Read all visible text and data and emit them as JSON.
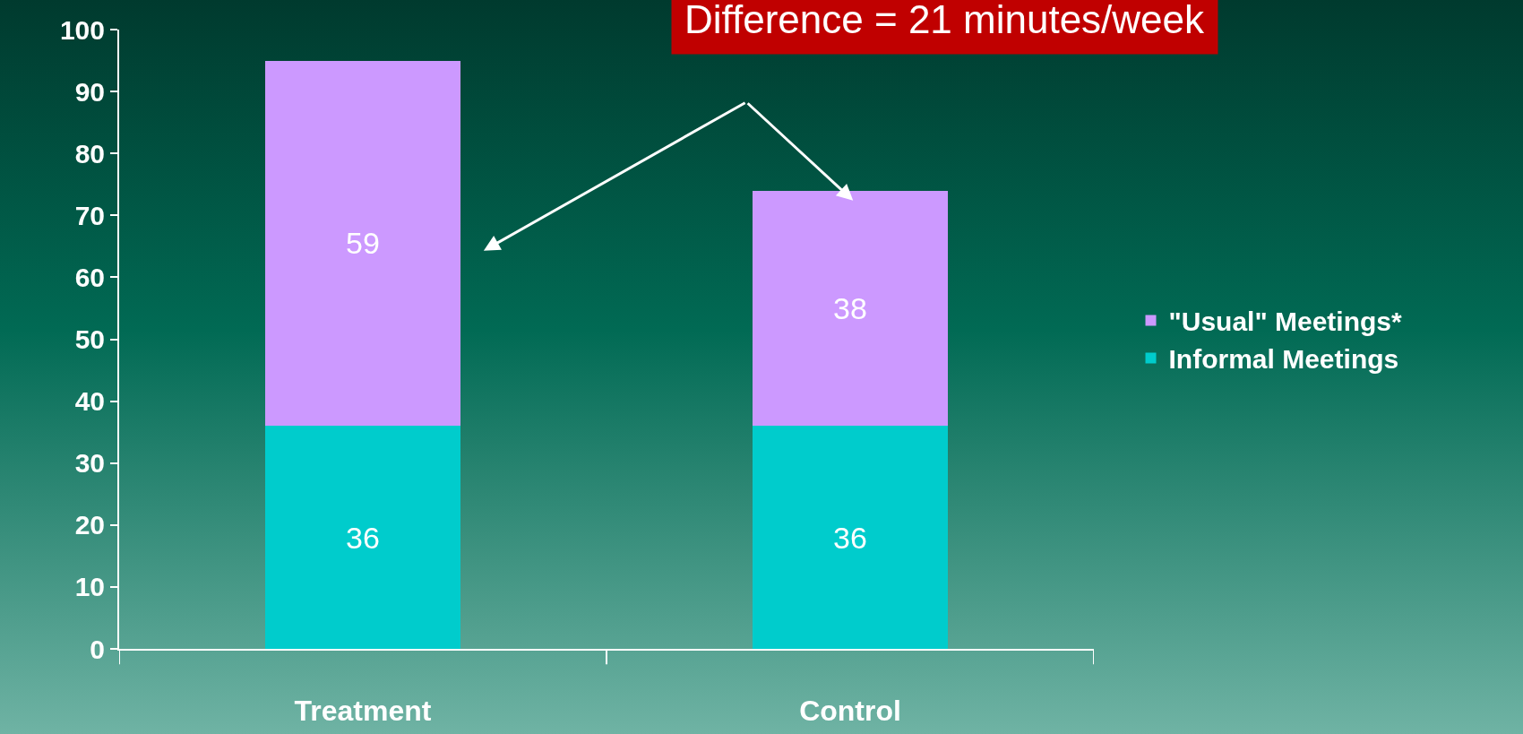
{
  "chart_data": {
    "type": "bar",
    "stacked": true,
    "categories": [
      "Treatment",
      "Control"
    ],
    "series": [
      {
        "name": "Informal Meetings",
        "color": "#00cccc",
        "values": [
          36,
          36
        ]
      },
      {
        "name": "\"Usual\" Meetings*",
        "color": "#cc99ff",
        "values": [
          59,
          38
        ]
      }
    ],
    "ylim": [
      0,
      100
    ],
    "yticks": [
      0,
      10,
      20,
      30,
      40,
      50,
      60,
      70,
      80,
      90,
      100
    ],
    "grid": false,
    "legend": "right",
    "data_labels": true,
    "annotations": [
      "Difference = 21 minutes/week"
    ]
  }
}
